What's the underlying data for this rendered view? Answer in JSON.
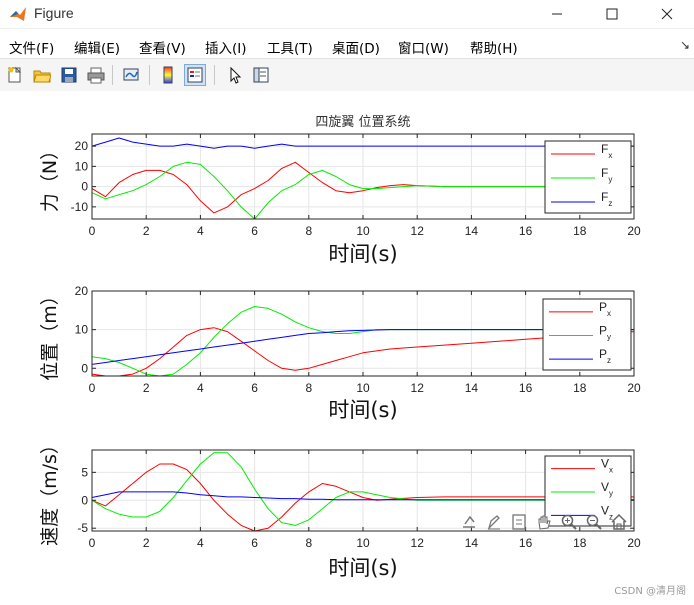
{
  "window": {
    "title": "Figure",
    "controls": {
      "minimize": "minimize",
      "maximize": "maximize",
      "close": "close"
    }
  },
  "menu": {
    "items": [
      "文件(F)",
      "编辑(E)",
      "查看(V)",
      "插入(I)",
      "工具(T)",
      "桌面(D)",
      "窗口(W)",
      "帮助(H)"
    ]
  },
  "toolbar": {
    "icons": [
      "new-figure-icon",
      "open-file-icon",
      "save-icon",
      "print-icon",
      "link-plot-icon",
      "colorbar-icon",
      "legend-icon",
      "pointer-icon",
      "property-inspector-icon"
    ]
  },
  "axes_toolbar": {
    "icons": [
      "export-icon",
      "brush-icon",
      "data-tips-icon",
      "pan-icon",
      "zoom-in-icon",
      "zoom-out-icon",
      "home-icon"
    ]
  },
  "watermark": "CSDN @清月阁",
  "colors": {
    "x": "#ff0000",
    "y": "#00ee00",
    "z": "#0000ff",
    "grid": "#e6e6e6"
  },
  "chart_data": [
    {
      "type": "line",
      "title": "四旋翼 位置系统",
      "xlabel": "时间(s)",
      "ylabel": "力（N）",
      "xlim": [
        0,
        20
      ],
      "ylim": [
        -16,
        26
      ],
      "xticks": [
        "0",
        "2",
        "4",
        "6",
        "8",
        "10",
        "12",
        "14",
        "16",
        "18",
        "20"
      ],
      "yticks": [
        "-10",
        "0",
        "10",
        "20"
      ],
      "ytick_values": [
        -10,
        0,
        10,
        20
      ],
      "grid": true,
      "legend_position": "top-right",
      "x": [
        0,
        0.5,
        1,
        1.5,
        2,
        2.5,
        3,
        3.5,
        4,
        4.5,
        5,
        5.5,
        6,
        6.5,
        7,
        7.5,
        8,
        8.5,
        9,
        9.5,
        10,
        10.5,
        11,
        11.5,
        12,
        13,
        14,
        16,
        18,
        20
      ],
      "series": [
        {
          "name": "F",
          "sub": "x",
          "color": "x",
          "values": [
            -1,
            -5,
            2,
            6,
            8,
            8,
            6,
            1,
            -7,
            -13,
            -10,
            -4,
            -1,
            3,
            9,
            12,
            7,
            2,
            -2,
            -3,
            -2,
            -0.5,
            0.5,
            1,
            0.5,
            0,
            0,
            0,
            0,
            0
          ]
        },
        {
          "name": "F",
          "sub": "y",
          "color": "y",
          "values": [
            -3,
            -6,
            -4,
            -2,
            1,
            5,
            10,
            12,
            11,
            5,
            -2,
            -10,
            -16,
            -8,
            -2,
            1,
            6,
            8,
            5,
            1,
            -1,
            -1,
            -0.5,
            0,
            0.5,
            0,
            0,
            0,
            0,
            0
          ]
        },
        {
          "name": "F",
          "sub": "z",
          "color": "z",
          "values": [
            20,
            22,
            24,
            22,
            21,
            20,
            20,
            21,
            20,
            19,
            20,
            20,
            19,
            20,
            21,
            20,
            20,
            20,
            20,
            20,
            20,
            20,
            20,
            20,
            20,
            20,
            20,
            20,
            20,
            20
          ]
        }
      ]
    },
    {
      "type": "line",
      "title": "",
      "xlabel": "时间(s)",
      "ylabel": "位置（m）",
      "xlim": [
        0,
        20
      ],
      "ylim": [
        -2,
        20
      ],
      "xticks": [
        "0",
        "2",
        "4",
        "6",
        "8",
        "10",
        "12",
        "14",
        "16",
        "18",
        "20"
      ],
      "yticks": [
        "0",
        "10",
        "20"
      ],
      "ytick_values": [
        0,
        10,
        20
      ],
      "grid": true,
      "legend_position": "top-right",
      "x": [
        0,
        0.5,
        1,
        1.5,
        2,
        2.5,
        3,
        3.5,
        4,
        4.5,
        5,
        5.5,
        6,
        6.5,
        7,
        7.5,
        8,
        8.5,
        9,
        9.5,
        10,
        10.5,
        11,
        12,
        13,
        14,
        16,
        18,
        20
      ],
      "series": [
        {
          "name": "P",
          "sub": "x",
          "color": "x",
          "values": [
            -1.5,
            -2,
            -2,
            -1.5,
            0,
            2.5,
            5.5,
            8.5,
            10,
            10.5,
            9.5,
            7,
            4.5,
            2,
            0,
            -0.5,
            0,
            1,
            2,
            3,
            4,
            4.5,
            5,
            5.5,
            6,
            6.5,
            7.5,
            8.5,
            9.5
          ]
        },
        {
          "name": "P",
          "sub": "y",
          "color": "y",
          "values": [
            3,
            2.5,
            1.5,
            0,
            -1.5,
            -2,
            -1.5,
            1,
            4,
            8,
            11.5,
            14.5,
            16,
            15.5,
            14,
            12,
            10.5,
            9.5,
            9,
            9,
            9.5,
            10,
            10,
            10,
            10,
            10,
            10,
            10,
            10
          ]
        },
        {
          "name": "P",
          "sub": "z",
          "color": "z",
          "values": [
            1,
            1.5,
            2,
            2.5,
            3,
            3.5,
            4,
            4.5,
            5,
            5.5,
            6,
            6.5,
            7,
            7.5,
            8,
            8.5,
            9,
            9.2,
            9.5,
            9.7,
            9.8,
            9.9,
            10,
            10,
            10,
            10,
            10,
            10,
            10
          ]
        }
      ]
    },
    {
      "type": "line",
      "title": "",
      "xlabel": "时间(s)",
      "ylabel": "速度（m/s）",
      "xlim": [
        0,
        20
      ],
      "ylim": [
        -5.5,
        9
      ],
      "xticks": [
        "0",
        "2",
        "4",
        "6",
        "8",
        "10",
        "12",
        "14",
        "16",
        "18",
        "20"
      ],
      "yticks": [
        "-5",
        "0",
        "5"
      ],
      "ytick_values": [
        -5,
        0,
        5
      ],
      "grid": true,
      "legend_position": "top-right",
      "x": [
        0,
        0.5,
        1,
        1.5,
        2,
        2.5,
        3,
        3.5,
        4,
        4.5,
        5,
        5.5,
        6,
        6.5,
        7,
        7.5,
        8,
        8.5,
        9,
        9.5,
        10,
        10.5,
        11,
        12,
        13,
        14,
        16,
        18,
        20
      ],
      "series": [
        {
          "name": "V",
          "sub": "x",
          "color": "x",
          "values": [
            0,
            -1,
            1,
            3,
            5,
            6.5,
            6.5,
            5.5,
            3,
            0,
            -2.5,
            -4.5,
            -5.5,
            -5,
            -3,
            -0.5,
            1.5,
            3,
            2.5,
            1.5,
            0.5,
            0,
            0.2,
            0.5,
            0.6,
            0.6,
            0.6,
            0.6,
            0.6
          ]
        },
        {
          "name": "V",
          "sub": "y",
          "color": "y",
          "values": [
            0,
            -1.5,
            -2.5,
            -3,
            -3,
            -2,
            0.5,
            3.5,
            6.5,
            8.5,
            8.5,
            6,
            2,
            -1.5,
            -4,
            -4.5,
            -3.5,
            -1.5,
            0.5,
            1.5,
            1.5,
            1,
            0.5,
            0,
            0,
            0,
            0,
            0,
            0
          ]
        },
        {
          "name": "V",
          "sub": "z",
          "color": "z",
          "values": [
            0.5,
            1,
            1.5,
            1.5,
            1.5,
            1.5,
            1.5,
            1.3,
            1,
            0.8,
            0.6,
            0.6,
            0.5,
            0.4,
            0.3,
            0.3,
            0.2,
            0.2,
            0.1,
            0.1,
            0.1,
            0.1,
            0.1,
            0.1,
            0.1,
            0.1,
            0.1,
            0.1,
            0.1
          ]
        }
      ]
    }
  ]
}
